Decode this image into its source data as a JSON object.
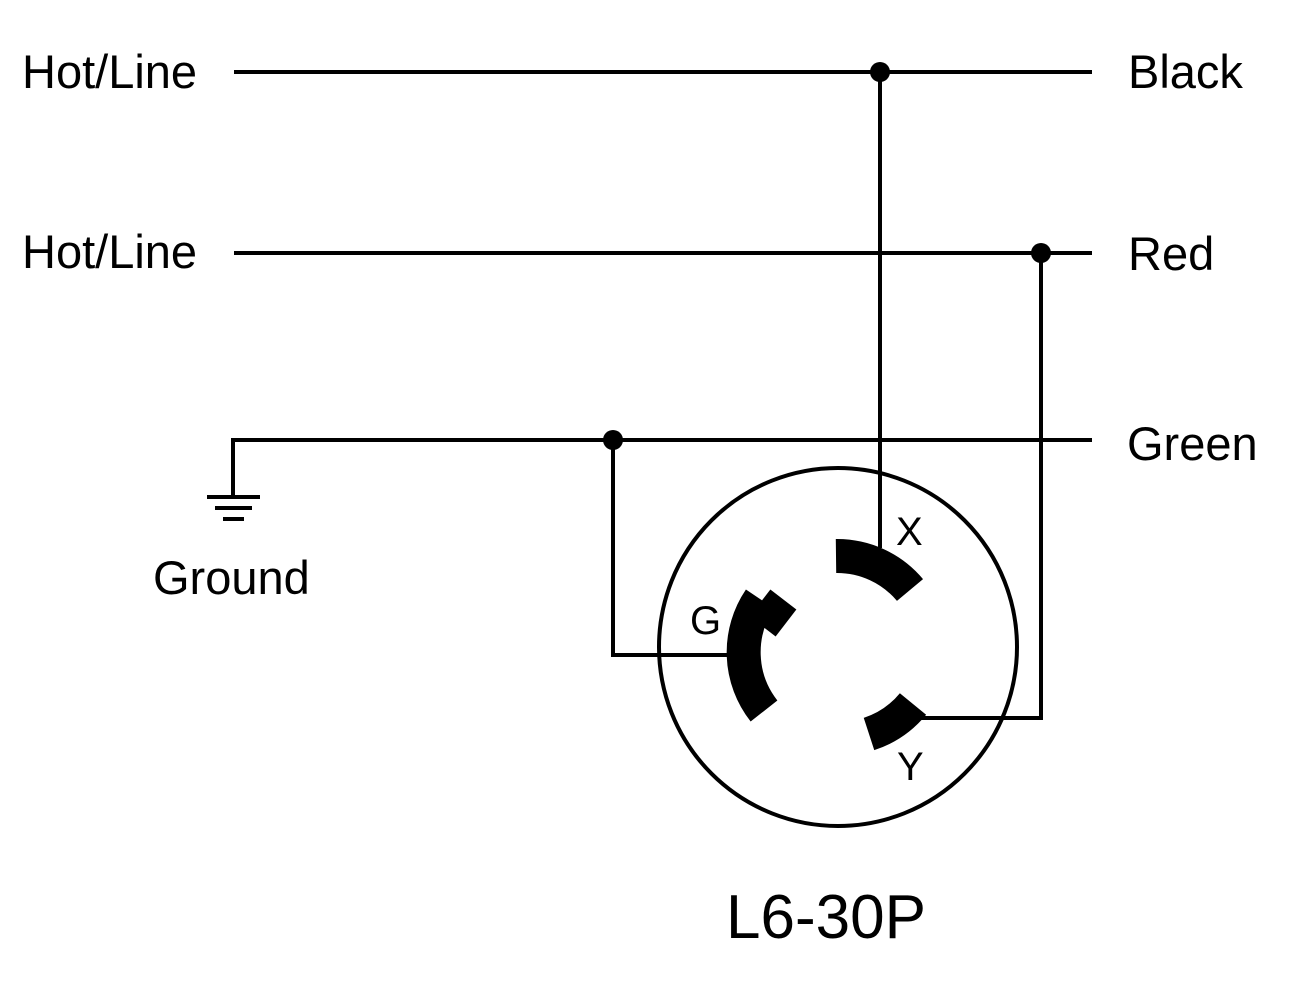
{
  "lines": {
    "hot_line_1": "Hot/Line",
    "hot_line_2": "Hot/Line",
    "ground": "Ground"
  },
  "wire_colors": {
    "black": "Black",
    "red": "Red",
    "green": "Green"
  },
  "pins": {
    "x": "X",
    "y": "Y",
    "g": "G"
  },
  "plug": {
    "model": "L6-30P"
  },
  "icons": {
    "ground": "ground-symbol-icon",
    "plug": "nema-plug-face-icon"
  }
}
